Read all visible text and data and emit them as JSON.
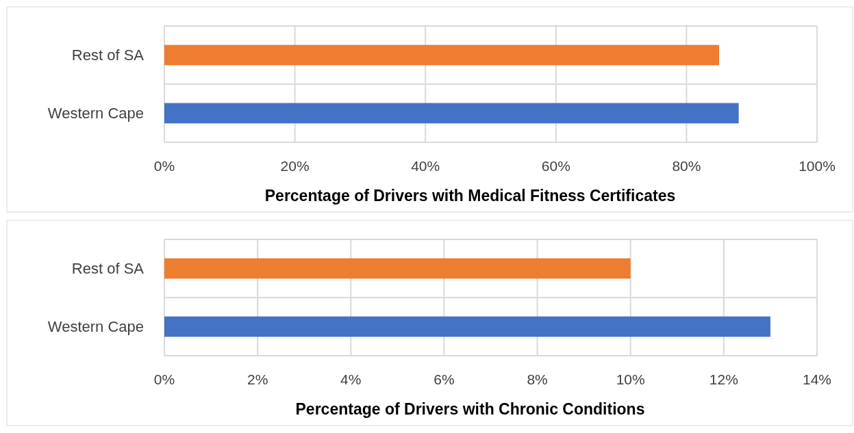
{
  "chart_data": [
    {
      "type": "bar",
      "orientation": "horizontal",
      "xlabel": "Percentage of Drivers with Medical Fitness Certificates",
      "categories": [
        "Rest of SA",
        "Western Cape"
      ],
      "colors": [
        "#ed7d31",
        "#4472c4"
      ],
      "values": [
        85,
        88
      ],
      "xlim": [
        0,
        100
      ],
      "xticks": [
        {
          "value": 0,
          "label": "0%"
        },
        {
          "value": 20,
          "label": "20%"
        },
        {
          "value": 40,
          "label": "40%"
        },
        {
          "value": 60,
          "label": "60%"
        },
        {
          "value": 80,
          "label": "80%"
        },
        {
          "value": 100,
          "label": "100%"
        }
      ],
      "grid": true
    },
    {
      "type": "bar",
      "orientation": "horizontal",
      "xlabel": "Percentage of Drivers with Chronic Conditions",
      "categories": [
        "Rest of SA",
        "Western Cape"
      ],
      "colors": [
        "#ed7d31",
        "#4472c4"
      ],
      "values": [
        10,
        13
      ],
      "xlim": [
        0,
        14
      ],
      "xticks": [
        {
          "value": 0,
          "label": "0%"
        },
        {
          "value": 2,
          "label": "2%"
        },
        {
          "value": 4,
          "label": "4%"
        },
        {
          "value": 6,
          "label": "6%"
        },
        {
          "value": 8,
          "label": "8%"
        },
        {
          "value": 10,
          "label": "10%"
        },
        {
          "value": 12,
          "label": "12%"
        },
        {
          "value": 14,
          "label": "14%"
        }
      ],
      "grid": true
    }
  ]
}
